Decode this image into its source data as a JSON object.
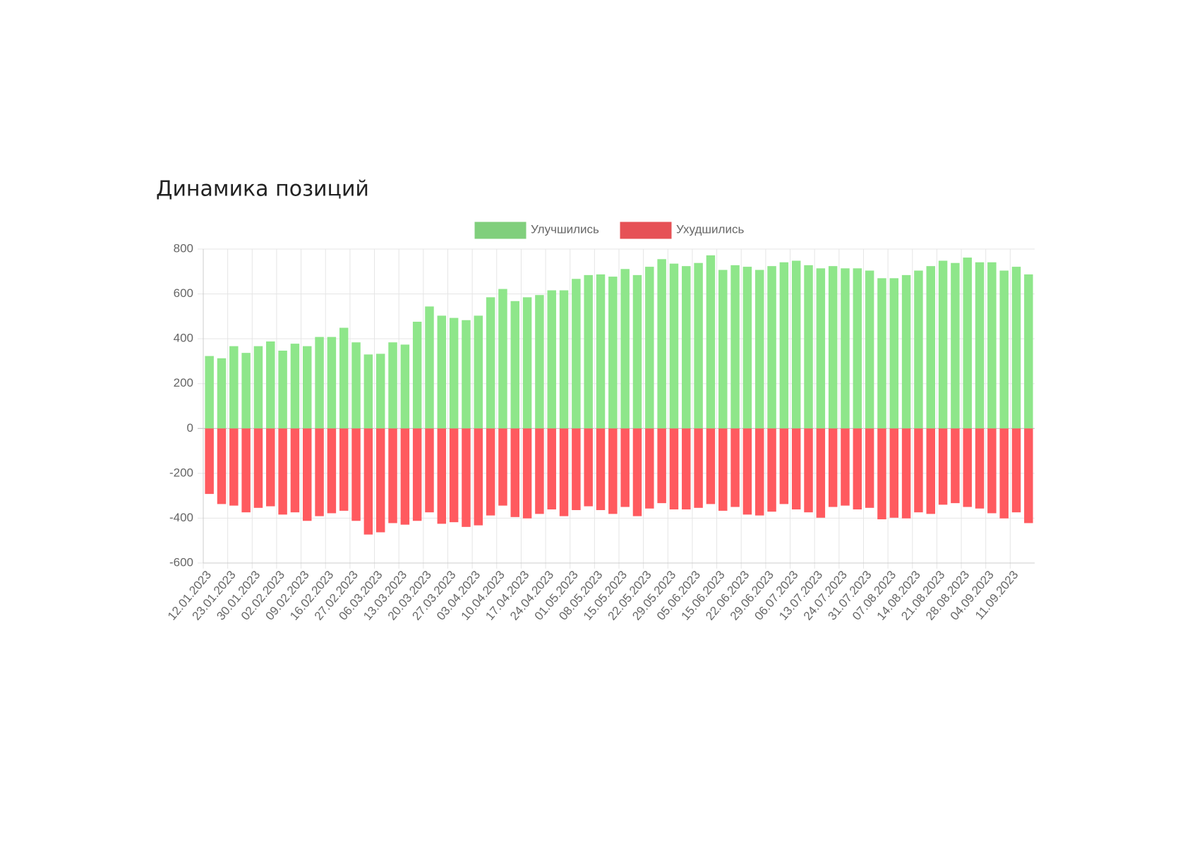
{
  "chart_data": {
    "type": "bar",
    "title": "Динамика позиций",
    "categories": [
      "12.01.2023",
      null,
      "23.01.2023",
      null,
      "30.01.2023",
      null,
      "02.02.2023",
      null,
      "09.02.2023",
      null,
      "16.02.2023",
      null,
      "27.02.2023",
      null,
      "06.03.2023",
      null,
      "13.03.2023",
      null,
      "20.03.2023",
      null,
      "27.03.2023",
      null,
      "03.04.2023",
      null,
      "10.04.2023",
      null,
      "17.04.2023",
      null,
      "24.04.2023",
      null,
      "01.05.2023",
      null,
      "08.05.2023",
      null,
      "15.05.2023",
      null,
      "22.05.2023",
      null,
      "29.05.2023",
      null,
      "05.06.2023",
      null,
      "15.06.2023",
      null,
      "22.06.2023",
      null,
      "29.06.2023",
      null,
      "06.07.2023",
      null,
      "13.07.2023",
      null,
      "24.07.2023",
      null,
      "31.07.2023",
      null,
      "07.08.2023",
      null,
      "14.08.2023",
      null,
      "21.08.2023",
      null,
      "28.08.2023",
      null,
      "04.09.2023",
      null,
      "11.09.2023",
      null
    ],
    "series": [
      {
        "name": "Улучшились",
        "color": "#8ee68a",
        "values": [
          323,
          313,
          367,
          337,
          367,
          388,
          347,
          378,
          367,
          408,
          408,
          449,
          384,
          330,
          333,
          384,
          374,
          476,
          544,
          503,
          493,
          483,
          503,
          585,
          622,
          568,
          585,
          595,
          616,
          616,
          667,
          684,
          687,
          677,
          711,
          684,
          721,
          755,
          735,
          724,
          738,
          772,
          707,
          728,
          721,
          707,
          724,
          741,
          748,
          728,
          714,
          724,
          714,
          714,
          704,
          670,
          670,
          684,
          704,
          724,
          748,
          738,
          762,
          741,
          741,
          704,
          721,
          687
        ]
      },
      {
        "name": "Ухудшились",
        "color": "#ff5a5f",
        "values": [
          -292,
          -337,
          -344,
          -374,
          -354,
          -347,
          -384,
          -374,
          -412,
          -391,
          -378,
          -367,
          -412,
          -473,
          -463,
          -422,
          -429,
          -412,
          -374,
          -425,
          -418,
          -439,
          -432,
          -388,
          -344,
          -395,
          -401,
          -381,
          -361,
          -391,
          -364,
          -347,
          -364,
          -381,
          -350,
          -391,
          -357,
          -333,
          -361,
          -361,
          -354,
          -337,
          -367,
          -350,
          -384,
          -388,
          -371,
          -337,
          -361,
          -374,
          -398,
          -350,
          -344,
          -361,
          -354,
          -405,
          -398,
          -401,
          -374,
          -381,
          -340,
          -333,
          -350,
          -357,
          -378,
          -401,
          -374,
          -422
        ]
      }
    ],
    "ylim": [
      -600,
      800
    ],
    "yticks": [
      -600,
      -400,
      -200,
      0,
      200,
      400,
      600,
      800
    ],
    "grid": true,
    "stacked": true,
    "legend": "top"
  }
}
